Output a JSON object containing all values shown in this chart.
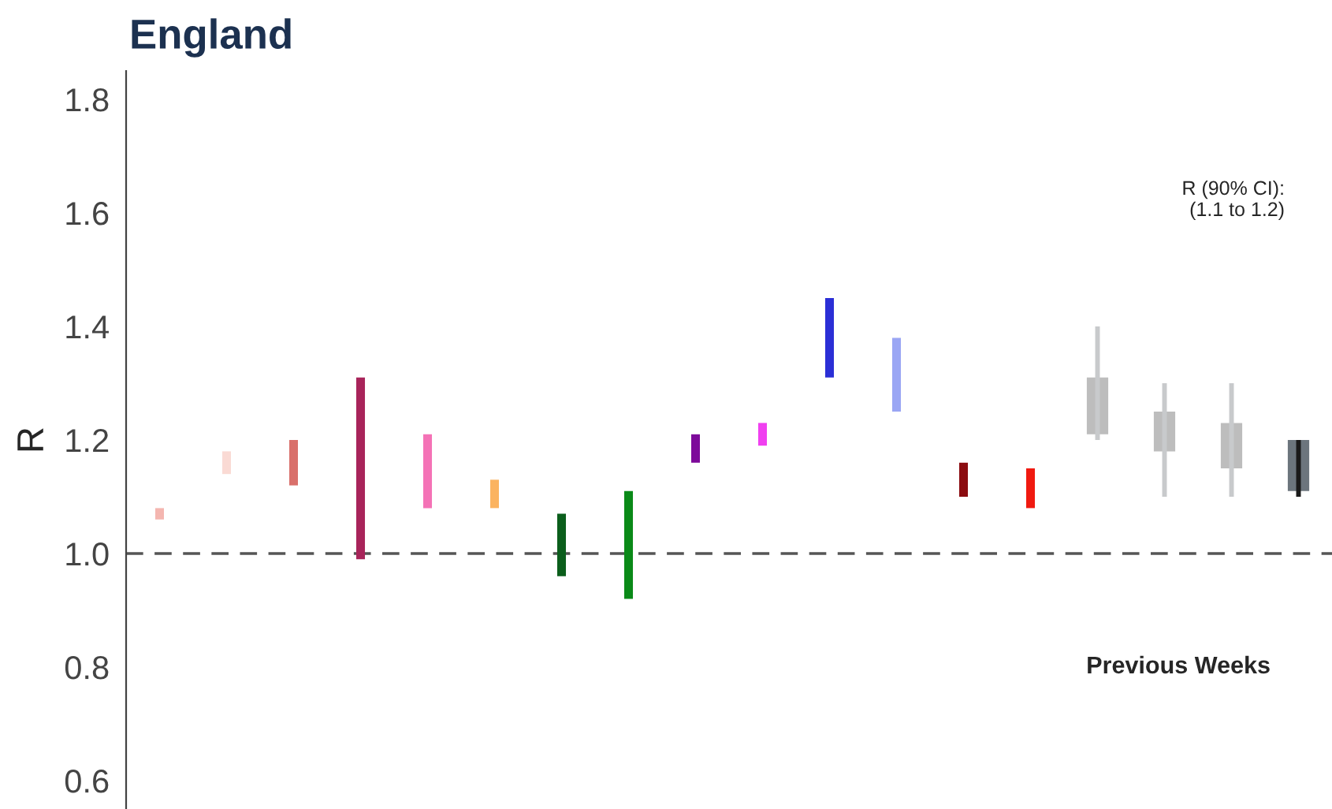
{
  "chart_data": {
    "type": "bar",
    "title": "England",
    "ylabel": "R",
    "categories": [
      null,
      null,
      null,
      null,
      null,
      null,
      null,
      null,
      null,
      null,
      null,
      null,
      null,
      null,
      null,
      null,
      null,
      null
    ],
    "series": [
      {
        "colors": [
          "#f4b6b0",
          "#fadad4",
          "#d9706b",
          "#a8245a",
          "#f472b6",
          "#fbb360",
          "#0b5e1c",
          "#0a8a18",
          "#7d0a9a",
          "#f040f0",
          "#2b2fd6",
          "#9aa6f4",
          "#8b0c10",
          "#f01a10",
          "#c8cacc",
          "#c8cacc",
          "#c8cacc",
          "#1a1a1a"
        ],
        "base": [
          1.06,
          1.14,
          1.12,
          0.99,
          1.08,
          1.08,
          0.96,
          0.92,
          1.16,
          1.19,
          1.31,
          1.25,
          1.1,
          1.08,
          1.2,
          1.1,
          1.1,
          1.1
        ],
        "values": [
          0.02,
          0.04,
          0.08,
          0.32,
          0.13,
          0.05,
          0.11,
          0.19,
          0.05,
          0.04,
          0.14,
          0.13,
          0.06,
          0.07,
          0.2,
          0.2,
          0.2,
          0.1
        ]
      },
      {
        "colors": [
          null,
          null,
          null,
          null,
          null,
          null,
          null,
          null,
          null,
          null,
          null,
          null,
          null,
          null,
          "#bdbdbd",
          "#bdbdbd",
          "#bdbdbd",
          "#6c757d"
        ],
        "base": [
          null,
          null,
          null,
          null,
          null,
          null,
          null,
          null,
          null,
          null,
          null,
          null,
          null,
          null,
          1.21,
          1.18,
          1.15,
          1.11
        ],
        "values": [
          null,
          null,
          null,
          null,
          null,
          null,
          null,
          null,
          null,
          null,
          null,
          null,
          null,
          null,
          0.1,
          0.07,
          0.08,
          0.09
        ]
      }
    ],
    "ylim": [
      0.55,
      1.85
    ],
    "yticks": [
      0.6,
      0.8,
      {
        "value": 1,
        "label": "1.0"
      },
      1.2,
      1.4,
      1.6,
      1.8
    ],
    "ref_lines": [
      {
        "axis": "y",
        "value": 1.0,
        "color": "#555555",
        "line_style": "dashed"
      }
    ],
    "annotations": [
      "R (90% CI):\n(1.1 to 1.2)",
      "Previous Weeks"
    ],
    "tick_labels": "y",
    "grid": false,
    "legend": false
  }
}
